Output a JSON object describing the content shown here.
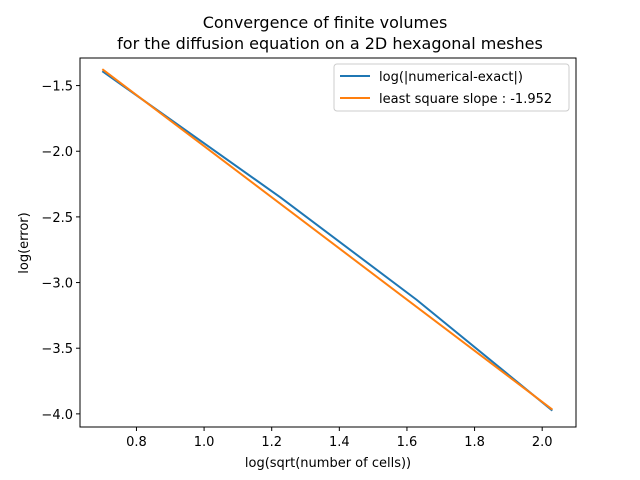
{
  "chart_data": {
    "type": "line",
    "title": [
      "Convergence of finite volumes",
      "for the diffusion equation on a 2D hexagonal meshes"
    ],
    "xlabel": "log(sqrt(number of cells))",
    "ylabel": "log(error)",
    "xlim": [
      0.633,
      2.1
    ],
    "ylim": [
      -4.1,
      -1.29
    ],
    "xticks": [
      0.8,
      1.0,
      1.2,
      1.4,
      1.6,
      1.8,
      2.0
    ],
    "yticks": [
      -1.5,
      -2.0,
      -2.5,
      -3.0,
      -3.5,
      -4.0
    ],
    "xtick_labels": [
      "0.8",
      "1.0",
      "1.2",
      "1.4",
      "1.6",
      "1.8",
      "2.0"
    ],
    "ytick_labels": [
      "−1.5",
      "−2.0",
      "−2.5",
      "−3.0",
      "−3.5",
      "−4.0"
    ],
    "legend_position": "top-right",
    "series": [
      {
        "name": "log(|numerical-exact|)",
        "color": "#1f77b4",
        "x": [
          0.699,
          1.225,
          1.628,
          2.03
        ],
        "y": [
          -1.39,
          -2.35,
          -3.13,
          -3.975
        ]
      },
      {
        "name": "least square slope : -1.952",
        "color": "#ff7f0e",
        "x": [
          0.699,
          2.03
        ],
        "y": [
          -1.375,
          -3.967
        ]
      }
    ]
  }
}
